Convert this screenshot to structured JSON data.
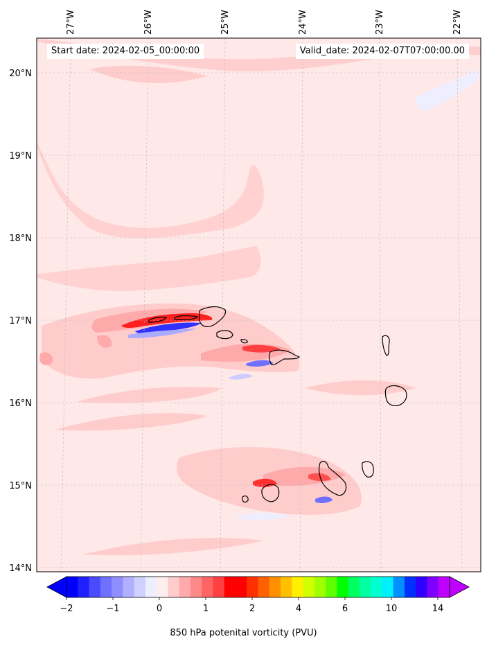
{
  "map": {
    "start_label": "Start date: 2024-02-05_00:00:00",
    "valid_label": "Valid_date: 2024-02-07T07:00:00.00",
    "colorbar_label": "850 hPa potenital vorticity (PVU)",
    "lon_labels": [
      "27°W",
      "26°W",
      "25°W",
      "24°W",
      "23°W",
      "22°W"
    ],
    "lat_labels": [
      "20°N",
      "19°N",
      "18°N",
      "17°N",
      "16°N",
      "15°N",
      "14°N"
    ],
    "colorbar_ticks": [
      "−2",
      "−1",
      "0",
      "1",
      "2",
      "4",
      "6",
      "10",
      "14"
    ],
    "colors": {
      "background_pv": "#ffe8e8",
      "light_pink": "#ffcccc",
      "pink": "#ffaaaa",
      "red": "#ff2020",
      "blue": "#3030ff",
      "light_blue": "#aaaaff",
      "very_light_blue": "#eeeeff",
      "coast": "#000000"
    },
    "colorbar_colors": [
      "#0000ff",
      "#2020ff",
      "#4a4aff",
      "#7070ff",
      "#8e8eff",
      "#b0b0ff",
      "#d0d0ff",
      "#eeeeff",
      "#ffeeee",
      "#ffcccc",
      "#ffaaaa",
      "#ff8888",
      "#ff6464",
      "#ff4040",
      "#ff0000",
      "#ff0000",
      "#ff3000",
      "#ff6000",
      "#ff9000",
      "#ffc000",
      "#fff000",
      "#d0ff00",
      "#a0ff00",
      "#60ff00",
      "#00ff00",
      "#00ff60",
      "#00ffa0",
      "#00ffd0",
      "#00f0ff",
      "#0090ff",
      "#0030ff",
      "#3000ff",
      "#8000ff",
      "#c000ff"
    ]
  }
}
